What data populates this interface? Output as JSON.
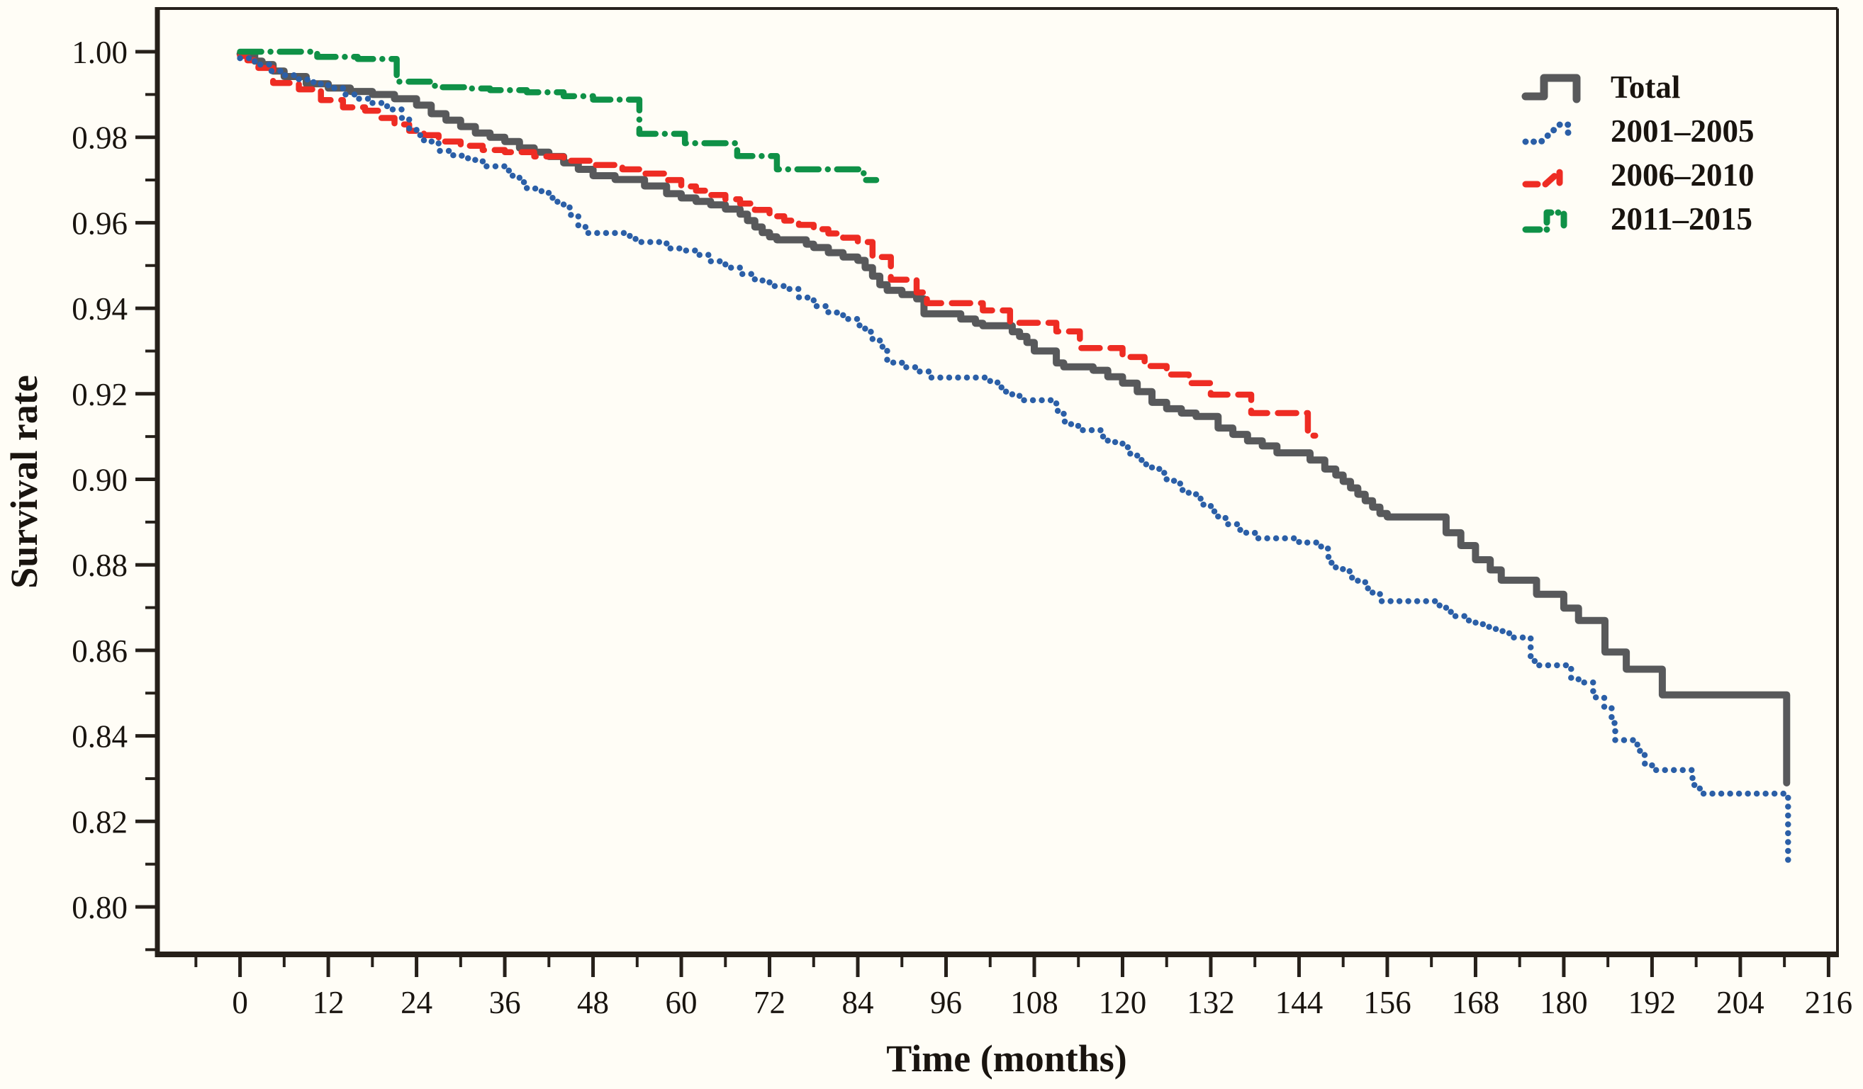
{
  "chart_data": {
    "type": "line",
    "subtype": "kaplan-meier-step",
    "title": "",
    "xlabel": "Time (months)",
    "ylabel": "Survival rate",
    "xlim": [
      -11.3,
      217.3
    ],
    "ylim": [
      0.7889,
      1.0101
    ],
    "grid": false,
    "x_ticks": [
      0,
      12,
      24,
      36,
      48,
      60,
      72,
      84,
      96,
      108,
      120,
      132,
      144,
      156,
      168,
      180,
      192,
      204,
      216
    ],
    "x_minor_ticks": [
      -6,
      6,
      18,
      30,
      42,
      54,
      66,
      78,
      90,
      102,
      114,
      126,
      138,
      150,
      162,
      174,
      186,
      198,
      210
    ],
    "y_ticks": [
      0.8,
      0.82,
      0.84,
      0.86,
      0.88,
      0.9,
      0.92,
      0.94,
      0.96,
      0.98,
      1.0
    ],
    "y_minor_ticks": [
      0.79,
      0.81,
      0.83,
      0.85,
      0.87,
      0.89,
      0.91,
      0.93,
      0.95,
      0.97,
      0.99
    ],
    "legend_position": "top-right",
    "colors": {
      "total": "#58595b",
      "y2001_2005": "#2b5fa7",
      "y2006_2010": "#ee2c23",
      "y2011_2015": "#0f9147",
      "axis": "#26201a",
      "background": "#fffdf6"
    },
    "series": [
      {
        "name": "Total",
        "style": "solid",
        "color": "#58595b",
        "points": [
          [
            0,
            0.9995
          ],
          [
            2,
            0.9978
          ],
          [
            3,
            0.997
          ],
          [
            4.5,
            0.9955
          ],
          [
            6,
            0.9942
          ],
          [
            9,
            0.9925
          ],
          [
            12,
            0.9915
          ],
          [
            15,
            0.9907
          ],
          [
            18,
            0.99
          ],
          [
            21,
            0.989
          ],
          [
            24,
            0.9875
          ],
          [
            26,
            0.9855
          ],
          [
            28,
            0.984
          ],
          [
            30,
            0.9825
          ],
          [
            32,
            0.981
          ],
          [
            34,
            0.98
          ],
          [
            36,
            0.979
          ],
          [
            38,
            0.9775
          ],
          [
            40,
            0.9765
          ],
          [
            42,
            0.9755
          ],
          [
            44,
            0.974
          ],
          [
            46,
            0.9725
          ],
          [
            48,
            0.971
          ],
          [
            51,
            0.9701
          ],
          [
            55,
            0.9686
          ],
          [
            58,
            0.9668
          ],
          [
            60,
            0.9658
          ],
          [
            62,
            0.965
          ],
          [
            64,
            0.9642
          ],
          [
            66,
            0.9632
          ],
          [
            68,
            0.962
          ],
          [
            69,
            0.9605
          ],
          [
            70,
            0.959
          ],
          [
            71,
            0.9577
          ],
          [
            72,
            0.9567
          ],
          [
            73,
            0.956
          ],
          [
            77,
            0.955
          ],
          [
            78,
            0.9542
          ],
          [
            80,
            0.953
          ],
          [
            82,
            0.952
          ],
          [
            84,
            0.9512
          ],
          [
            85,
            0.9495
          ],
          [
            86,
            0.9475
          ],
          [
            87,
            0.9455
          ],
          [
            88,
            0.9442
          ],
          [
            90,
            0.9432
          ],
          [
            92,
            0.9422
          ],
          [
            93,
            0.9387
          ],
          [
            98,
            0.9375
          ],
          [
            100,
            0.9365
          ],
          [
            101,
            0.9359
          ],
          [
            105,
            0.9345
          ],
          [
            106,
            0.9334
          ],
          [
            107,
            0.932
          ],
          [
            108,
            0.93
          ],
          [
            111,
            0.9272
          ],
          [
            112,
            0.9263
          ],
          [
            116,
            0.9255
          ],
          [
            118,
            0.924
          ],
          [
            120,
            0.9225
          ],
          [
            122,
            0.9205
          ],
          [
            124,
            0.918
          ],
          [
            126,
            0.9165
          ],
          [
            128,
            0.9155
          ],
          [
            130,
            0.9147
          ],
          [
            133,
            0.912
          ],
          [
            135,
            0.9105
          ],
          [
            137,
            0.909
          ],
          [
            139,
            0.9078
          ],
          [
            141,
            0.9062
          ],
          [
            145.5,
            0.9045
          ],
          [
            147.5,
            0.9024
          ],
          [
            149,
            0.901
          ],
          [
            150,
            0.8995
          ],
          [
            151,
            0.898
          ],
          [
            152,
            0.8965
          ],
          [
            153,
            0.895
          ],
          [
            154,
            0.8935
          ],
          [
            155,
            0.892
          ],
          [
            156,
            0.8912
          ],
          [
            164,
            0.8875
          ],
          [
            166,
            0.8845
          ],
          [
            168,
            0.8812
          ],
          [
            170,
            0.8788
          ],
          [
            171.5,
            0.8764
          ],
          [
            176.3,
            0.8731
          ],
          [
            180,
            0.8699
          ],
          [
            182,
            0.867
          ],
          [
            185.6,
            0.8596
          ],
          [
            188.5,
            0.8556
          ],
          [
            193.4,
            0.8496
          ],
          [
            210.3,
            0.829
          ]
        ]
      },
      {
        "name": "2001–2005",
        "style": "dotted",
        "color": "#2b5fa7",
        "points": [
          [
            0,
            0.9985
          ],
          [
            2,
            0.997
          ],
          [
            4,
            0.9955
          ],
          [
            6,
            0.9945
          ],
          [
            8,
            0.9935
          ],
          [
            10,
            0.9925
          ],
          [
            12,
            0.9915
          ],
          [
            14,
            0.99
          ],
          [
            16,
            0.989
          ],
          [
            18,
            0.988
          ],
          [
            20,
            0.9865
          ],
          [
            22,
            0.9845
          ],
          [
            23,
            0.982
          ],
          [
            24,
            0.9805
          ],
          [
            25,
            0.979
          ],
          [
            27,
            0.9768
          ],
          [
            29,
            0.9757
          ],
          [
            31,
            0.9747
          ],
          [
            33,
            0.9732
          ],
          [
            36,
            0.9722
          ],
          [
            37,
            0.971
          ],
          [
            38,
            0.9695
          ],
          [
            39,
            0.968
          ],
          [
            41,
            0.967
          ],
          [
            42.5,
            0.9649
          ],
          [
            44,
            0.9636
          ],
          [
            45,
            0.9615
          ],
          [
            46,
            0.959
          ],
          [
            47,
            0.9576
          ],
          [
            53,
            0.9562
          ],
          [
            54,
            0.9555
          ],
          [
            58,
            0.954
          ],
          [
            60,
            0.9535
          ],
          [
            62,
            0.9525
          ],
          [
            64,
            0.951
          ],
          [
            66,
            0.9495
          ],
          [
            68,
            0.948
          ],
          [
            70,
            0.9465
          ],
          [
            72,
            0.9452
          ],
          [
            74,
            0.9445
          ],
          [
            76,
            0.9425
          ],
          [
            78,
            0.9405
          ],
          [
            80,
            0.939
          ],
          [
            82,
            0.9375
          ],
          [
            84,
            0.936
          ],
          [
            85,
            0.9345
          ],
          [
            86,
            0.9325
          ],
          [
            87,
            0.931
          ],
          [
            88,
            0.9273
          ],
          [
            90,
            0.9262
          ],
          [
            92,
            0.9252
          ],
          [
            94,
            0.9238
          ],
          [
            102,
            0.9228
          ],
          [
            103,
            0.9215
          ],
          [
            104,
            0.9205
          ],
          [
            105,
            0.9195
          ],
          [
            106,
            0.9185
          ],
          [
            111,
            0.916
          ],
          [
            112,
            0.9135
          ],
          [
            113,
            0.9125
          ],
          [
            114,
            0.9115
          ],
          [
            117,
            0.91
          ],
          [
            118,
            0.909
          ],
          [
            119,
            0.9085
          ],
          [
            120,
            0.9075
          ],
          [
            121,
            0.906
          ],
          [
            122,
            0.9045
          ],
          [
            123,
            0.9035
          ],
          [
            124,
            0.9025
          ],
          [
            125,
            0.9015
          ],
          [
            126,
            0.9
          ],
          [
            127,
            0.899
          ],
          [
            128,
            0.8975
          ],
          [
            129,
            0.8965
          ],
          [
            130,
            0.8955
          ],
          [
            131,
            0.894
          ],
          [
            132,
            0.8925
          ],
          [
            133,
            0.891
          ],
          [
            134,
            0.8895
          ],
          [
            136,
            0.8875
          ],
          [
            138,
            0.8862
          ],
          [
            144,
            0.8852
          ],
          [
            147,
            0.8838
          ],
          [
            148,
            0.8805
          ],
          [
            149,
            0.879
          ],
          [
            150,
            0.8785
          ],
          [
            151,
            0.877
          ],
          [
            152,
            0.876
          ],
          [
            153,
            0.8745
          ],
          [
            154,
            0.8735
          ],
          [
            155,
            0.8715
          ],
          [
            163,
            0.8705
          ],
          [
            164,
            0.869
          ],
          [
            165,
            0.868
          ],
          [
            167,
            0.867
          ],
          [
            168,
            0.8665
          ],
          [
            169,
            0.8655
          ],
          [
            170,
            0.865
          ],
          [
            171,
            0.8645
          ],
          [
            172,
            0.864
          ],
          [
            173,
            0.863
          ],
          [
            175.5,
            0.8575
          ],
          [
            176.5,
            0.8565
          ],
          [
            181,
            0.8535
          ],
          [
            182,
            0.8525
          ],
          [
            184,
            0.849
          ],
          [
            185.5,
            0.8465
          ],
          [
            186.5,
            0.843
          ],
          [
            187,
            0.839
          ],
          [
            190,
            0.8365
          ],
          [
            191,
            0.8335
          ],
          [
            192,
            0.832
          ],
          [
            197.5,
            0.8285
          ],
          [
            198.5,
            0.8265
          ],
          [
            210.5,
            0.809
          ]
        ]
      },
      {
        "name": "2006–2010",
        "style": "dashed",
        "color": "#ee2c23",
        "points": [
          [
            0,
            0.999
          ],
          [
            1,
            0.998
          ],
          [
            2.5,
            0.9962
          ],
          [
            4.5,
            0.9927
          ],
          [
            8,
            0.9912
          ],
          [
            11,
            0.9887
          ],
          [
            14,
            0.987
          ],
          [
            17,
            0.9862
          ],
          [
            19,
            0.9845
          ],
          [
            21,
            0.983
          ],
          [
            23,
            0.9815
          ],
          [
            25,
            0.9805
          ],
          [
            27,
            0.979
          ],
          [
            30,
            0.978
          ],
          [
            33,
            0.977
          ],
          [
            36,
            0.9765
          ],
          [
            40,
            0.9755
          ],
          [
            44,
            0.9745
          ],
          [
            48,
            0.9735
          ],
          [
            52,
            0.9725
          ],
          [
            55,
            0.9715
          ],
          [
            58,
            0.97
          ],
          [
            60,
            0.9685
          ],
          [
            62,
            0.9675
          ],
          [
            64,
            0.9665
          ],
          [
            66,
            0.9655
          ],
          [
            68,
            0.9645
          ],
          [
            70,
            0.963
          ],
          [
            72,
            0.9615
          ],
          [
            74,
            0.9605
          ],
          [
            76,
            0.9595
          ],
          [
            78,
            0.9585
          ],
          [
            80,
            0.9575
          ],
          [
            82,
            0.9565
          ],
          [
            84,
            0.9555
          ],
          [
            86,
            0.952
          ],
          [
            88.5,
            0.9467
          ],
          [
            92,
            0.9437
          ],
          [
            93.4,
            0.9412
          ],
          [
            101,
            0.9395
          ],
          [
            104.7,
            0.9366
          ],
          [
            111,
            0.9346
          ],
          [
            114.2,
            0.9307
          ],
          [
            120,
            0.9286
          ],
          [
            123,
            0.9265
          ],
          [
            126,
            0.9245
          ],
          [
            129,
            0.9225
          ],
          [
            132,
            0.9198
          ],
          [
            137.5,
            0.9155
          ],
          [
            145.2,
            0.9102
          ],
          [
            146.2,
            0.9102
          ]
        ]
      },
      {
        "name": "2011–2015",
        "style": "dashdot",
        "color": "#0f9147",
        "points": [
          [
            0,
            1.0
          ],
          [
            10.5,
            0.9988
          ],
          [
            16,
            0.9983
          ],
          [
            21.3,
            0.993
          ],
          [
            26.5,
            0.9917
          ],
          [
            31,
            0.9914
          ],
          [
            34,
            0.991
          ],
          [
            39,
            0.9905
          ],
          [
            44,
            0.9896
          ],
          [
            48,
            0.9888
          ],
          [
            54.3,
            0.9808
          ],
          [
            60.5,
            0.9786
          ],
          [
            67.6,
            0.9756
          ],
          [
            73,
            0.9725
          ],
          [
            84.8,
            0.97
          ],
          [
            86.5,
            0.97
          ]
        ]
      }
    ]
  }
}
